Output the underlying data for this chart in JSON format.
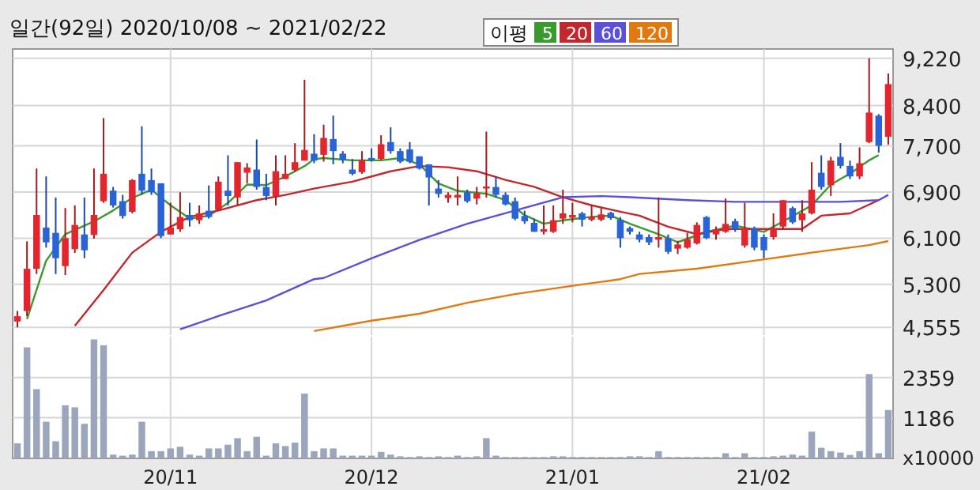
{
  "chart_data": [
    {
      "type": "candlestick",
      "title": "일간(92일) 2020/10/08 ~ 2021/02/22",
      "legend_title": "이평",
      "legend": "top",
      "grid": true,
      "tick_labels": "y",
      "categories": [
        null,
        null,
        null,
        null,
        null,
        null,
        null,
        null,
        null,
        null,
        null,
        null,
        null,
        null,
        null,
        null,
        null,
        null,
        null,
        null,
        null,
        null,
        null,
        null,
        null,
        null,
        null,
        null,
        null,
        null,
        null,
        null,
        null,
        null,
        null,
        null,
        null,
        null,
        null,
        null,
        null,
        null,
        null,
        null,
        null,
        null,
        null,
        null,
        null,
        null,
        null,
        null,
        null,
        null,
        null,
        null,
        null,
        null,
        null,
        null,
        null,
        null,
        null,
        null,
        null,
        null,
        null,
        null,
        null,
        null,
        null,
        null,
        null,
        null,
        null,
        null,
        null,
        null,
        null,
        null,
        null,
        null,
        null,
        null,
        null,
        null,
        null,
        null,
        null,
        null,
        null,
        null
      ],
      "ylim": [
        4420,
        9380
      ],
      "yticks": [
        {
          "value": 4555,
          "label": "4,555"
        },
        {
          "value": 5300,
          "label": "5,300"
        },
        {
          "value": 6100,
          "label": "6,100"
        },
        {
          "value": 6900,
          "label": "6,900"
        },
        {
          "value": 7700,
          "label": "7,700"
        },
        {
          "value": 8400,
          "label": "8,400"
        },
        {
          "value": 9220,
          "label": "9,220"
        }
      ],
      "ohlc": [
        [
          4656,
          4838,
          4555,
          4747
        ],
        [
          4838,
          6046,
          4747,
          5570
        ],
        [
          5570,
          7308,
          5479,
          6503
        ],
        [
          6284,
          7171,
          5936,
          6028
        ],
        [
          6192,
          6805,
          5479,
          5753
        ],
        [
          5616,
          6622,
          5461,
          6101
        ],
        [
          5909,
          6668,
          5845,
          6330
        ],
        [
          6165,
          6805,
          5753,
          5891
        ],
        [
          6156,
          7308,
          6092,
          6503
        ],
        [
          6741,
          8183,
          6714,
          7217
        ],
        [
          6924,
          6988,
          6631,
          6668
        ],
        [
          6741,
          6851,
          6439,
          6485
        ],
        [
          6558,
          7125,
          6530,
          7107
        ],
        [
          7217,
          8040,
          6851,
          6924
        ],
        [
          7107,
          7308,
          6851,
          6897
        ],
        [
          7052,
          7052,
          6101,
          6137
        ],
        [
          6165,
          6714,
          6165,
          6284
        ],
        [
          6256,
          6896,
          6211,
          6467
        ],
        [
          6503,
          6714,
          6302,
          6412
        ],
        [
          6412,
          6668,
          6348,
          6530
        ],
        [
          6576,
          7016,
          6439,
          6467
        ],
        [
          6594,
          7171,
          6576,
          7080
        ],
        [
          6924,
          7537,
          6668,
          6832
        ],
        [
          6805,
          7418,
          6668,
          7418
        ],
        [
          7235,
          7400,
          7052,
          7326
        ],
        [
          7290,
          7811,
          6942,
          6988
        ],
        [
          6988,
          7217,
          6759,
          6832
        ],
        [
          6832,
          7537,
          6668,
          7262
        ],
        [
          7125,
          7537,
          7125,
          7217
        ],
        [
          7281,
          7747,
          7253,
          7418
        ],
        [
          7445,
          8846,
          7445,
          7629
        ],
        [
          7565,
          7903,
          7400,
          7445
        ],
        [
          7546,
          8068,
          7427,
          7839
        ],
        [
          7820,
          8224,
          7381,
          7610
        ],
        [
          7565,
          7610,
          7400,
          7455
        ],
        [
          7290,
          7473,
          7190,
          7217
        ],
        [
          7244,
          7610,
          7217,
          7455
        ],
        [
          7491,
          7656,
          7427,
          7455
        ],
        [
          7473,
          7885,
          7455,
          7729
        ],
        [
          7766,
          8022,
          7565,
          7610
        ],
        [
          7610,
          7656,
          7400,
          7427
        ],
        [
          7638,
          7766,
          7400,
          7427
        ],
        [
          7519,
          7519,
          7290,
          7308
        ],
        [
          7381,
          7381,
          6668,
          7153
        ],
        [
          6961,
          7107,
          6805,
          6869
        ],
        [
          6796,
          6896,
          6714,
          6851
        ],
        [
          6805,
          7171,
          6668,
          6851
        ],
        [
          6896,
          6942,
          6714,
          6741
        ],
        [
          6787,
          6988,
          6686,
          6878
        ],
        [
          6961,
          7949,
          6805,
          6997
        ],
        [
          6988,
          7171,
          6805,
          6851
        ],
        [
          6851,
          6896,
          6668,
          6686
        ],
        [
          6741,
          6805,
          6412,
          6439
        ],
        [
          6485,
          6576,
          6348,
          6393
        ],
        [
          6366,
          6439,
          6211,
          6211
        ],
        [
          6211,
          6668,
          6165,
          6256
        ],
        [
          6211,
          6668,
          6192,
          6412
        ],
        [
          6439,
          6942,
          6348,
          6530
        ],
        [
          6457,
          6714,
          6375,
          6503
        ],
        [
          6530,
          6558,
          6302,
          6421
        ],
        [
          6421,
          6668,
          6393,
          6467
        ],
        [
          6421,
          6622,
          6393,
          6512
        ],
        [
          6540,
          6558,
          6421,
          6448
        ],
        [
          6421,
          6467,
          5936,
          6101
        ],
        [
          6275,
          6302,
          6165,
          6211
        ],
        [
          6165,
          6211,
          6028,
          6074
        ],
        [
          6119,
          6165,
          5982,
          6028
        ],
        [
          6074,
          6805,
          5936,
          6119
        ],
        [
          6101,
          6165,
          5826,
          5863
        ],
        [
          5918,
          6055,
          5826,
          5991
        ],
        [
          5936,
          6192,
          5918,
          6083
        ],
        [
          6010,
          6375,
          5991,
          6330
        ],
        [
          6467,
          6485,
          6083,
          6101
        ],
        [
          6165,
          6302,
          6074,
          6256
        ],
        [
          6211,
          6787,
          6192,
          6348
        ],
        [
          6393,
          6439,
          6211,
          6256
        ],
        [
          5973,
          6714,
          5936,
          6275
        ],
        [
          6275,
          6302,
          5891,
          5936
        ],
        [
          6119,
          6165,
          5753,
          5891
        ],
        [
          6119,
          6530,
          6074,
          6275
        ],
        [
          6302,
          6759,
          6256,
          6759
        ],
        [
          6622,
          6650,
          6348,
          6375
        ],
        [
          6412,
          6759,
          6211,
          6530
        ],
        [
          6530,
          7418,
          6512,
          6942
        ],
        [
          7235,
          7537,
          6942,
          6988
        ],
        [
          7016,
          7510,
          6833,
          7446
        ],
        [
          7510,
          7748,
          7308,
          7354
        ],
        [
          7354,
          7446,
          7125,
          7171
        ],
        [
          7171,
          7674,
          7125,
          7400
        ],
        [
          7766,
          9220,
          7748,
          8278
        ],
        [
          8224,
          8251,
          7583,
          7702
        ],
        [
          7858,
          8955,
          7720,
          8772
        ]
      ],
      "series": [
        {
          "name": "5",
          "type": "line",
          "color": "#3a9a2e",
          "values": [
            null,
            4700,
            null,
            5710,
            null,
            6170,
            null,
            null,
            6390,
            null,
            6580,
            null,
            6800,
            null,
            6940,
            null,
            6670,
            null,
            6440,
            null,
            6490,
            null,
            6710,
            null,
            7030,
            null,
            7020,
            null,
            7170,
            null,
            7350,
            7470,
            7490,
            null,
            null,
            7450,
            null,
            null,
            7450,
            null,
            7490,
            null,
            7380,
            null,
            7050,
            null,
            6920,
            null,
            null,
            6870,
            null,
            6760,
            null,
            6500,
            null,
            6350,
            null,
            6410,
            null,
            null,
            6470,
            null,
            6490,
            null,
            6350,
            null,
            null,
            6170,
            null,
            6030,
            null,
            null,
            6210,
            null,
            null,
            6320,
            null,
            null,
            6210,
            null,
            6390,
            null,
            null,
            6670,
            null,
            7030,
            null,
            7220,
            null,
            7450,
            7540,
            null
          ]
        },
        {
          "name": "20",
          "type": "line",
          "color": "#c0282d",
          "values": [
            null,
            null,
            null,
            null,
            null,
            null,
            4580,
            null,
            null,
            5200,
            null,
            null,
            5850,
            null,
            null,
            6210,
            null,
            null,
            6470,
            null,
            null,
            6580,
            null,
            null,
            null,
            6760,
            null,
            null,
            6850,
            null,
            null,
            6960,
            6990,
            null,
            null,
            7080,
            null,
            null,
            null,
            7260,
            null,
            null,
            7350,
            null,
            null,
            7330,
            null,
            null,
            7260,
            null,
            null,
            7110,
            null,
            null,
            6990,
            null,
            null,
            6810,
            null,
            null,
            6670,
            null,
            null,
            6560,
            null,
            6490,
            null,
            null,
            6300,
            null,
            null,
            6170,
            null,
            null,
            6260,
            null,
            6260,
            null,
            null,
            6260,
            null,
            null,
            6260,
            null,
            6490,
            null,
            null,
            6530,
            null,
            null,
            6760,
            null
          ]
        },
        {
          "name": "60",
          "type": "line",
          "color": "#5a4fd6",
          "values": [
            null,
            null,
            null,
            null,
            null,
            null,
            null,
            null,
            null,
            null,
            null,
            null,
            null,
            null,
            null,
            null,
            null,
            4520,
            null,
            null,
            null,
            4750,
            null,
            null,
            null,
            null,
            5020,
            null,
            null,
            null,
            null,
            5390,
            5410,
            null,
            null,
            null,
            null,
            5750,
            null,
            null,
            null,
            null,
            6070,
            null,
            null,
            null,
            null,
            6350,
            null,
            null,
            null,
            null,
            6580,
            null,
            null,
            null,
            null,
            6810,
            null,
            null,
            null,
            6830,
            null,
            null,
            6810,
            null,
            null,
            null,
            null,
            null,
            6760,
            null,
            null,
            null,
            null,
            6730,
            null,
            null,
            null,
            null,
            null,
            6730,
            null,
            null,
            null,
            null,
            6730,
            null,
            null,
            null,
            6760,
            6850
          ]
        },
        {
          "name": "120",
          "type": "line",
          "color": "#e07a10",
          "values": [
            null,
            null,
            null,
            null,
            null,
            null,
            null,
            null,
            null,
            null,
            null,
            null,
            null,
            null,
            null,
            null,
            null,
            null,
            null,
            null,
            null,
            null,
            null,
            null,
            null,
            null,
            null,
            null,
            null,
            null,
            null,
            4490,
            null,
            null,
            null,
            null,
            null,
            4670,
            null,
            null,
            null,
            null,
            4790,
            null,
            null,
            null,
            null,
            4980,
            null,
            null,
            null,
            null,
            5130,
            null,
            null,
            null,
            null,
            5250,
            null,
            null,
            null,
            null,
            null,
            5390,
            null,
            5480,
            null,
            null,
            null,
            null,
            null,
            5570,
            null,
            null,
            null,
            null,
            null,
            5710,
            null,
            null,
            null,
            null,
            null,
            5850,
            null,
            null,
            null,
            null,
            null,
            5980,
            null,
            6050
          ]
        }
      ]
    },
    {
      "type": "bar",
      "grid": true,
      "tick_labels": "xy",
      "color": "#9ba6bc",
      "ylim": [
        0,
        3550
      ],
      "yticks": [
        1186,
        2359
      ],
      "annotations": [
        "x10000"
      ],
      "categories": [
        null,
        null,
        null,
        null,
        null,
        null,
        null,
        null,
        null,
        null,
        null,
        null,
        null,
        null,
        null,
        null,
        "20/11",
        null,
        null,
        null,
        null,
        null,
        null,
        null,
        null,
        null,
        null,
        null,
        null,
        null,
        null,
        null,
        null,
        null,
        null,
        null,
        null,
        "20/12",
        null,
        null,
        null,
        null,
        null,
        null,
        null,
        null,
        null,
        null,
        null,
        null,
        null,
        null,
        null,
        null,
        null,
        null,
        null,
        null,
        "21/01",
        null,
        null,
        null,
        null,
        null,
        null,
        null,
        null,
        null,
        null,
        null,
        null,
        null,
        null,
        null,
        null,
        null,
        null,
        null,
        "21/02",
        null,
        null,
        null,
        null,
        null,
        null,
        null,
        null,
        null,
        null,
        null,
        null,
        null
      ],
      "values": [
        440,
        3240,
        2020,
        1070,
        500,
        1550,
        1490,
        1010,
        3470,
        3300,
        110,
        80,
        110,
        1070,
        210,
        210,
        290,
        340,
        110,
        80,
        290,
        290,
        400,
        590,
        210,
        630,
        80,
        440,
        360,
        460,
        1890,
        210,
        290,
        290,
        80,
        80,
        80,
        80,
        190,
        110,
        60,
        40,
        60,
        40,
        60,
        40,
        80,
        40,
        60,
        590,
        80,
        40,
        40,
        40,
        40,
        40,
        60,
        60,
        40,
        40,
        40,
        40,
        40,
        40,
        60,
        60,
        40,
        210,
        40,
        40,
        40,
        40,
        40,
        40,
        150,
        40,
        150,
        40,
        40,
        60,
        80,
        110,
        80,
        780,
        310,
        210,
        170,
        100,
        210,
        2460,
        150,
        1410
      ]
    }
  ]
}
